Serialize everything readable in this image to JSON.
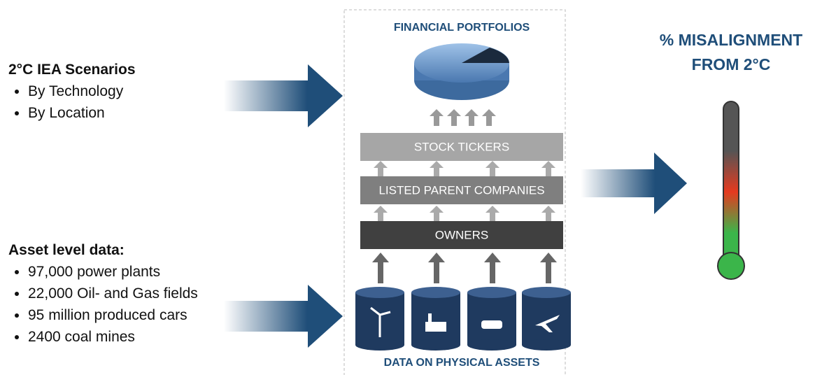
{
  "left_top": {
    "title": "2°C IEA Scenarios",
    "items": [
      "By Technology",
      "By Location"
    ]
  },
  "left_bottom": {
    "title": "Asset level data:",
    "items": [
      "97,000 power plants",
      "22,000 Oil- and Gas fields",
      "95 million produced cars",
      "2400 coal mines"
    ]
  },
  "center": {
    "top": "FINANCIAL PORTFOLIOS",
    "layers": [
      "STOCK TICKERS",
      "LISTED PARENT COMPANIES",
      "OWNERS"
    ],
    "bottom": "DATA ON PHYSICAL ASSETS"
  },
  "right": {
    "title_lines": [
      "% MISALIGNMENT",
      "FROM 2°C"
    ]
  }
}
